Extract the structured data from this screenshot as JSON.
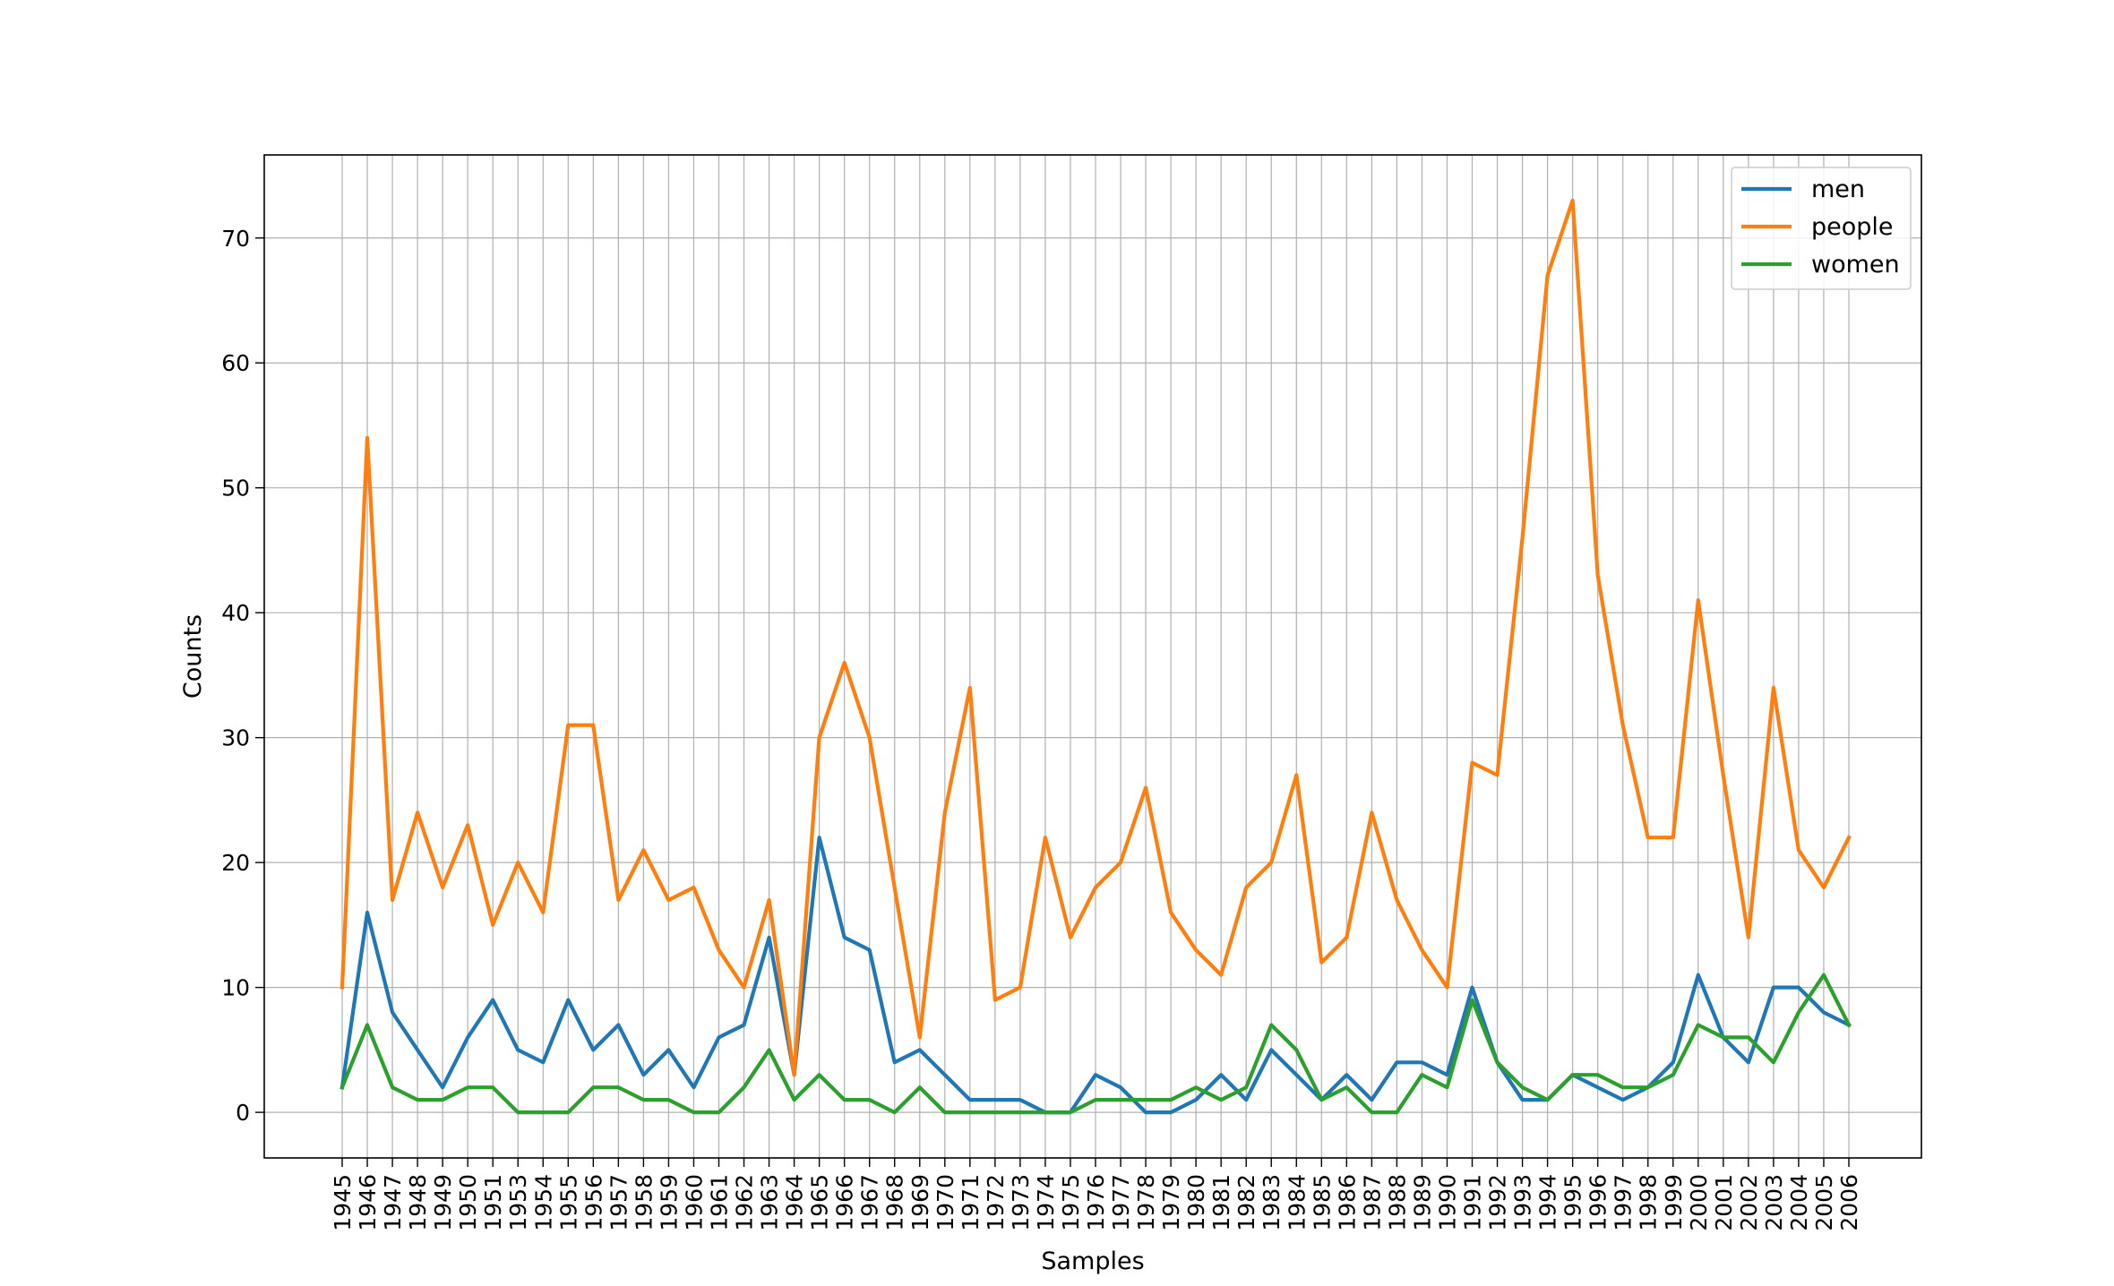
{
  "chart_data": {
    "type": "line",
    "xlabel": "Samples",
    "ylabel": "Counts",
    "grid": true,
    "legend_position": "top-right",
    "ylim": [
      -3.65,
      76.65
    ],
    "yticks": [
      0,
      10,
      20,
      30,
      40,
      50,
      60,
      70
    ],
    "categories": [
      "1945",
      "1946",
      "1947",
      "1948",
      "1949",
      "1950",
      "1951",
      "1953",
      "1954",
      "1955",
      "1956",
      "1957",
      "1958",
      "1959",
      "1960",
      "1961",
      "1962",
      "1963",
      "1964",
      "1965",
      "1966",
      "1967",
      "1968",
      "1969",
      "1970",
      "1971",
      "1972",
      "1973",
      "1974",
      "1975",
      "1976",
      "1977",
      "1978",
      "1979",
      "1980",
      "1981",
      "1982",
      "1983",
      "1984",
      "1985",
      "1986",
      "1987",
      "1988",
      "1989",
      "1990",
      "1991",
      "1992",
      "1993",
      "1994",
      "1995",
      "1996",
      "1997",
      "1998",
      "1999",
      "2000",
      "2001",
      "2002",
      "2003",
      "2004",
      "2005",
      "2006"
    ],
    "series": [
      {
        "name": "men",
        "color": "#1f77b4",
        "values": [
          2,
          16,
          8,
          5,
          2,
          6,
          9,
          5,
          4,
          9,
          5,
          7,
          3,
          5,
          2,
          6,
          7,
          14,
          3,
          22,
          14,
          13,
          4,
          5,
          3,
          1,
          1,
          1,
          0,
          0,
          3,
          2,
          0,
          0,
          1,
          3,
          1,
          5,
          3,
          1,
          3,
          1,
          4,
          4,
          3,
          10,
          4,
          1,
          1,
          3,
          2,
          1,
          2,
          4,
          11,
          6,
          4,
          10,
          10,
          8,
          7
        ]
      },
      {
        "name": "people",
        "color": "#ff7f0e",
        "values": [
          10,
          54,
          17,
          24,
          18,
          23,
          15,
          20,
          16,
          31,
          31,
          17,
          21,
          17,
          18,
          13,
          10,
          17,
          3,
          30,
          36,
          30,
          18,
          6,
          24,
          34,
          9,
          10,
          22,
          14,
          18,
          20,
          26,
          16,
          13,
          11,
          18,
          20,
          27,
          12,
          14,
          24,
          17,
          13,
          10,
          28,
          27,
          46,
          67,
          73,
          43,
          31,
          22,
          22,
          41,
          27,
          14,
          34,
          21,
          18,
          22
        ]
      },
      {
        "name": "women",
        "color": "#2ca02c",
        "values": [
          2,
          7,
          2,
          1,
          1,
          2,
          2,
          0,
          0,
          0,
          2,
          2,
          1,
          1,
          0,
          0,
          2,
          5,
          1,
          3,
          1,
          1,
          0,
          2,
          0,
          0,
          0,
          0,
          0,
          0,
          1,
          1,
          1,
          1,
          2,
          1,
          2,
          7,
          5,
          1,
          2,
          0,
          0,
          3,
          2,
          9,
          4,
          2,
          1,
          3,
          3,
          2,
          2,
          3,
          7,
          6,
          6,
          4,
          8,
          11,
          7
        ]
      }
    ]
  }
}
